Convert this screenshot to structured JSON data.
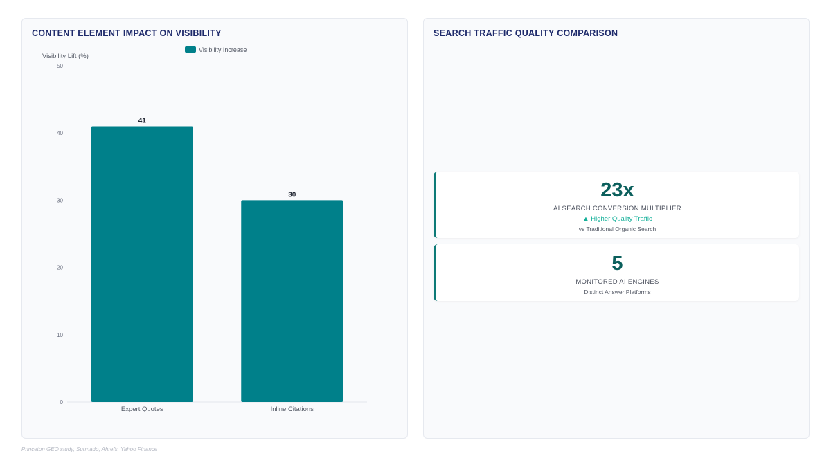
{
  "left_panel": {
    "title": "CONTENT ELEMENT IMPACT ON VISIBILITY"
  },
  "right_panel": {
    "title": "SEARCH TRAFFIC QUALITY COMPARISON"
  },
  "chart_data": {
    "type": "bar",
    "categories": [
      "Expert Quotes",
      "Inline Citations"
    ],
    "series": [
      {
        "name": "Visibility Increase",
        "values": [
          41,
          30
        ]
      }
    ],
    "ylabel": "Visibility Lift (%)",
    "xlabel": "",
    "ylim": [
      0,
      50
    ],
    "yticks": [
      0,
      10,
      20,
      30,
      40,
      50
    ],
    "legend": "top",
    "grid": false,
    "bar_color": "#00808a"
  },
  "kpis": [
    {
      "value": "23x",
      "label": "AI SEARCH CONVERSION MULTIPLIER",
      "trend": "▲ Higher Quality Traffic",
      "sub": "vs Traditional Organic Search"
    },
    {
      "value": "5",
      "label": "MONITORED AI ENGINES",
      "sub": "Distinct Answer Platforms"
    }
  ],
  "colors": {
    "accent": "#0d7a77",
    "title": "#1e2a6b",
    "trend": "#15b09a"
  },
  "source": "Princeton GEO study, Surmado, Ahrefs, Yahoo Finance"
}
